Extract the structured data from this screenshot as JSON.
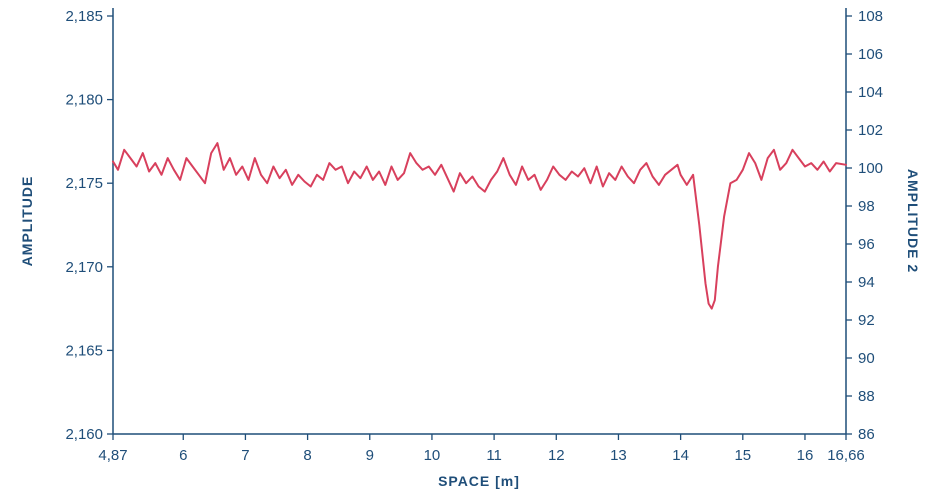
{
  "chart_data": {
    "type": "line",
    "title": "",
    "xlabel": "SPACE [m]",
    "ylabel": "AMPLITUDE",
    "ylabel_right": "AMPLITUDE 2",
    "xlim": [
      4.87,
      16.66
    ],
    "ylim": [
      2.16,
      2.185
    ],
    "ylim_right": [
      86,
      108
    ],
    "x_ticks": [
      4.87,
      6,
      7,
      8,
      9,
      10,
      11,
      12,
      13,
      14,
      15,
      16,
      16.66
    ],
    "x_tick_labels": [
      "4,87",
      "6",
      "7",
      "8",
      "9",
      "10",
      "11",
      "12",
      "13",
      "14",
      "15",
      "16",
      "16,66"
    ],
    "y_ticks": [
      2.16,
      2.165,
      2.17,
      2.175,
      2.18,
      2.185
    ],
    "y_tick_labels": [
      "2,160",
      "2,165",
      "2,170",
      "2,175",
      "2,180",
      "2,185"
    ],
    "y_ticks_right": [
      86,
      88,
      90,
      92,
      94,
      96,
      98,
      100,
      102,
      104,
      106,
      108
    ],
    "y_tick_labels_right": [
      "86",
      "88",
      "90",
      "92",
      "94",
      "96",
      "98",
      "100",
      "102",
      "104",
      "106",
      "108"
    ],
    "grid": false,
    "colors": {
      "axis": "#1f4e79",
      "series": "#d8405d"
    },
    "series": [
      {
        "x": [
          4.87,
          4.95,
          5.05,
          5.15,
          5.25,
          5.35,
          5.45,
          5.55,
          5.65,
          5.75,
          5.85,
          5.95,
          6.05,
          6.15,
          6.25,
          6.35,
          6.45,
          6.55,
          6.65,
          6.75,
          6.85,
          6.95,
          7.05,
          7.15,
          7.25,
          7.35,
          7.45,
          7.55,
          7.65,
          7.75,
          7.85,
          7.95,
          8.05,
          8.15,
          8.25,
          8.35,
          8.45,
          8.55,
          8.65,
          8.75,
          8.85,
          8.95,
          9.05,
          9.15,
          9.25,
          9.35,
          9.45,
          9.55,
          9.65,
          9.75,
          9.85,
          9.95,
          10.05,
          10.15,
          10.25,
          10.35,
          10.45,
          10.55,
          10.65,
          10.75,
          10.85,
          10.95,
          11.05,
          11.15,
          11.25,
          11.35,
          11.45,
          11.55,
          11.65,
          11.75,
          11.85,
          11.95,
          12.05,
          12.15,
          12.25,
          12.35,
          12.45,
          12.55,
          12.65,
          12.75,
          12.85,
          12.95,
          13.05,
          13.15,
          13.25,
          13.35,
          13.45,
          13.55,
          13.65,
          13.75,
          13.85,
          13.95,
          14.0,
          14.1,
          14.2,
          14.3,
          14.4,
          14.45,
          14.5,
          14.55,
          14.6,
          14.7,
          14.8,
          14.9,
          15.0,
          15.1,
          15.2,
          15.3,
          15.4,
          15.5,
          15.6,
          15.7,
          15.8,
          15.9,
          16.0,
          16.1,
          16.2,
          16.3,
          16.4,
          16.5,
          16.66
        ],
        "y": [
          2.1763,
          2.1758,
          2.177,
          2.1765,
          2.176,
          2.1768,
          2.1757,
          2.1762,
          2.1755,
          2.1765,
          2.1758,
          2.1752,
          2.1765,
          2.176,
          2.1755,
          2.175,
          2.1768,
          2.1774,
          2.1758,
          2.1765,
          2.1755,
          2.176,
          2.1752,
          2.1765,
          2.1755,
          2.175,
          2.176,
          2.1753,
          2.1758,
          2.1749,
          2.1755,
          2.1751,
          2.1748,
          2.1755,
          2.1752,
          2.1762,
          2.1758,
          2.176,
          2.175,
          2.1757,
          2.1753,
          2.176,
          2.1752,
          2.1757,
          2.1749,
          2.176,
          2.1752,
          2.1756,
          2.1768,
          2.1762,
          2.1758,
          2.176,
          2.1755,
          2.1761,
          2.1753,
          2.1745,
          2.1756,
          2.175,
          2.1754,
          2.1748,
          2.1745,
          2.1752,
          2.1757,
          2.1765,
          2.1755,
          2.1749,
          2.176,
          2.1752,
          2.1755,
          2.1746,
          2.1752,
          2.176,
          2.1755,
          2.1752,
          2.1757,
          2.1754,
          2.1759,
          2.175,
          2.176,
          2.1748,
          2.1756,
          2.1752,
          2.176,
          2.1754,
          2.175,
          2.1758,
          2.1762,
          2.1754,
          2.1749,
          2.1755,
          2.1758,
          2.1761,
          2.1755,
          2.1749,
          2.1755,
          2.1725,
          2.169,
          2.1678,
          2.1675,
          2.168,
          2.17,
          2.173,
          2.175,
          2.1752,
          2.1758,
          2.1768,
          2.1762,
          2.1752,
          2.1765,
          2.177,
          2.1758,
          2.1762,
          2.177,
          2.1765,
          2.176,
          2.1762,
          2.1758,
          2.1763,
          2.1757,
          2.1762,
          2.1761
        ]
      }
    ]
  }
}
